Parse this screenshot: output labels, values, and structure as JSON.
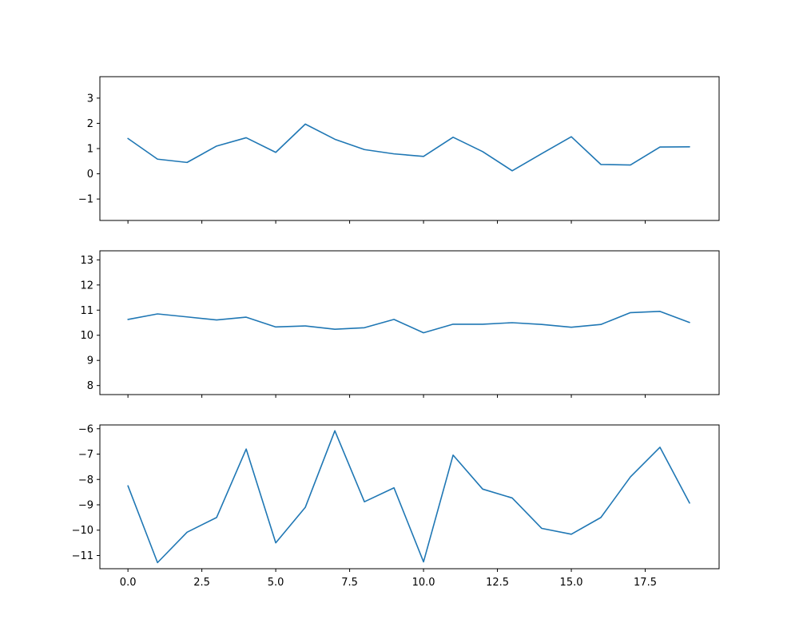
{
  "chart_data": [
    {
      "type": "line",
      "x": [
        0,
        1,
        2,
        3,
        4,
        5,
        6,
        7,
        8,
        9,
        10,
        11,
        12,
        13,
        14,
        15,
        16,
        17,
        18,
        19
      ],
      "series": [
        {
          "values": [
            1.4,
            0.58,
            0.45,
            1.1,
            1.43,
            0.85,
            1.97,
            1.37,
            0.96,
            0.79,
            0.69,
            1.45,
            0.88,
            0.12,
            0.8,
            1.47,
            0.37,
            0.35,
            1.06,
            1.07
          ],
          "color": "#1f77b4"
        }
      ],
      "ylim": [
        -1.85,
        3.85
      ],
      "xlim": [
        -0.95,
        20.0
      ],
      "yticks": [
        -1,
        0,
        1,
        2,
        3
      ],
      "ytick_labels": [
        "−1",
        "0",
        "1",
        "2",
        "3"
      ],
      "xticks": [
        0,
        2.5,
        5,
        7.5,
        10,
        12.5,
        15,
        17.5
      ],
      "xtick_labels": [],
      "xlabel": "",
      "ylabel": "",
      "title": "",
      "grid": false
    },
    {
      "type": "line",
      "x": [
        0,
        1,
        2,
        3,
        4,
        5,
        6,
        7,
        8,
        9,
        10,
        11,
        12,
        13,
        14,
        15,
        16,
        17,
        18,
        19
      ],
      "series": [
        {
          "values": [
            10.63,
            10.85,
            10.73,
            10.61,
            10.72,
            10.33,
            10.37,
            10.24,
            10.3,
            10.63,
            10.1,
            10.44,
            10.44,
            10.5,
            10.43,
            10.32,
            10.43,
            10.9,
            10.95,
            10.51
          ],
          "color": "#1f77b4"
        }
      ],
      "ylim": [
        7.64,
        13.36
      ],
      "xlim": [
        -0.95,
        20.0
      ],
      "yticks": [
        8,
        9,
        10,
        11,
        12,
        13
      ],
      "ytick_labels": [
        "8",
        "9",
        "10",
        "11",
        "12",
        "13"
      ],
      "xticks": [
        0,
        2.5,
        5,
        7.5,
        10,
        12.5,
        15,
        17.5
      ],
      "xtick_labels": [],
      "xlabel": "",
      "ylabel": "",
      "title": "",
      "grid": false
    },
    {
      "type": "line",
      "x": [
        0,
        1,
        2,
        3,
        4,
        5,
        6,
        7,
        8,
        9,
        10,
        11,
        12,
        13,
        14,
        15,
        16,
        17,
        18,
        19
      ],
      "series": [
        {
          "values": [
            -8.25,
            -11.28,
            -10.08,
            -9.5,
            -6.8,
            -10.5,
            -9.1,
            -6.08,
            -8.88,
            -8.33,
            -11.25,
            -7.04,
            -8.38,
            -8.73,
            -9.93,
            -10.16,
            -9.5,
            -7.9,
            -6.73,
            -8.93
          ],
          "color": "#1f77b4"
        }
      ],
      "ylim": [
        -11.52,
        -5.85
      ],
      "xlim": [
        -0.95,
        20.0
      ],
      "yticks": [
        -11,
        -10,
        -9,
        -8,
        -7,
        -6
      ],
      "ytick_labels": [
        "−11",
        "−10",
        "−9",
        "−8",
        "−7",
        "−6"
      ],
      "xticks": [
        0,
        2.5,
        5,
        7.5,
        10,
        12.5,
        15,
        17.5
      ],
      "xtick_labels": [
        "0.0",
        "2.5",
        "5.0",
        "7.5",
        "10.0",
        "12.5",
        "15.0",
        "17.5"
      ],
      "xlabel": "",
      "ylabel": "",
      "title": "",
      "grid": false
    }
  ]
}
